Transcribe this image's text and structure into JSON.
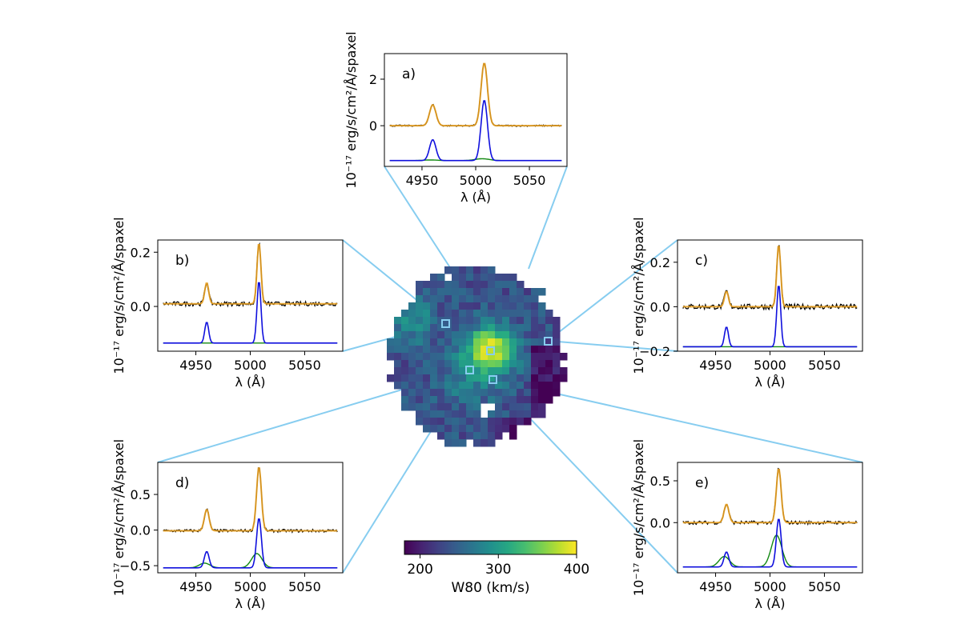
{
  "colors": {
    "data": "#000000",
    "total_fit": "#e8a020",
    "narrow": "#1010dd",
    "broad": "#118811",
    "connector": "#87cdf0",
    "frame": "#000000"
  },
  "map": {
    "colorbar": {
      "label": "W80 (km/s)",
      "range": [
        180,
        400
      ],
      "ticks": [
        200,
        300,
        400
      ],
      "cmap": "viridis"
    }
  },
  "chart_data": [
    {
      "type": "line",
      "panel": "a",
      "label": "a)",
      "xlabel": "λ (Å)",
      "ylabel": "10⁻¹⁷ erg/s/cm²/Å/spaxel",
      "xlim": [
        4915,
        5085
      ],
      "ylim": [
        -1.75,
        3.1
      ],
      "xticks": [
        4950,
        5000,
        5050
      ],
      "yticks": [
        0,
        2
      ],
      "ytick_labels": [
        "0",
        "2"
      ],
      "baseline": 0.0,
      "peak1": 0.9,
      "peak2": 2.7,
      "noise": 0.03,
      "narrow_offset": -1.5,
      "narrow1": 0.9,
      "narrow2": 2.6,
      "broad": 0.08,
      "width": 3.0
    },
    {
      "type": "line",
      "panel": "b",
      "label": "b)",
      "xlabel": "λ (Å)",
      "ylabel": "10⁻¹⁷ erg/s/cm²/Å/spaxel",
      "xlim": [
        4915,
        5085
      ],
      "ylim": [
        -0.165,
        0.245
      ],
      "xticks": [
        4950,
        5000,
        5050
      ],
      "yticks": [
        0.0,
        0.2
      ],
      "ytick_labels": [
        "0.0",
        "0.2"
      ],
      "baseline": 0.01,
      "peak1": 0.078,
      "peak2": 0.225,
      "noise": 0.008,
      "narrow_offset": -0.135,
      "narrow1": 0.078,
      "narrow2": 0.23,
      "broad": 0.0,
      "width": 1.8
    },
    {
      "type": "line",
      "panel": "c",
      "label": "c)",
      "xlabel": "λ (Å)",
      "ylabel": "10⁻¹⁷ erg/s/cm²/Å/spaxel",
      "xlim": [
        4915,
        5085
      ],
      "ylim": [
        -0.2,
        0.3
      ],
      "xticks": [
        4950,
        5000,
        5050
      ],
      "yticks": [
        -0.2,
        0.0,
        0.2
      ],
      "ytick_labels": [
        "−0.2",
        "0.0",
        "0.2"
      ],
      "baseline": 0.0,
      "peak1": 0.07,
      "peak2": 0.28,
      "noise": 0.012,
      "narrow_offset": -0.18,
      "narrow1": 0.09,
      "narrow2": 0.28,
      "broad": 0.0,
      "width": 1.8
    },
    {
      "type": "line",
      "panel": "d",
      "label": "d)",
      "xlabel": "λ (Å)",
      "ylabel": "10⁻¹⁷ erg/s/cm²/Å/spaxel",
      "xlim": [
        4915,
        5085
      ],
      "ylim": [
        -0.6,
        0.95
      ],
      "xticks": [
        4950,
        5000,
        5050
      ],
      "yticks": [
        -0.5,
        0.0,
        0.5
      ],
      "ytick_labels": [
        "−0.5",
        "0.0",
        "0.5"
      ],
      "baseline": -0.01,
      "peak1": 0.3,
      "peak2": 0.9,
      "noise": 0.02,
      "narrow_offset": -0.53,
      "narrow1": 0.23,
      "narrow2": 0.7,
      "broad": 0.2,
      "width": 2.2
    },
    {
      "type": "line",
      "panel": "e",
      "label": "e)",
      "xlabel": "λ (Å)",
      "ylabel": "10⁻¹⁷ erg/s/cm²/Å/spaxel",
      "xlim": [
        4915,
        5085
      ],
      "ylim": [
        -0.6,
        0.72
      ],
      "xticks": [
        4950,
        5000,
        5050
      ],
      "yticks": [
        0.0,
        0.5
      ],
      "ytick_labels": [
        "0.0",
        "0.5"
      ],
      "baseline": 0.0,
      "peak1": 0.22,
      "peak2": 0.65,
      "noise": 0.02,
      "narrow_offset": -0.53,
      "narrow1": 0.18,
      "narrow2": 0.58,
      "broad": 0.38,
      "width": 2.2
    }
  ]
}
